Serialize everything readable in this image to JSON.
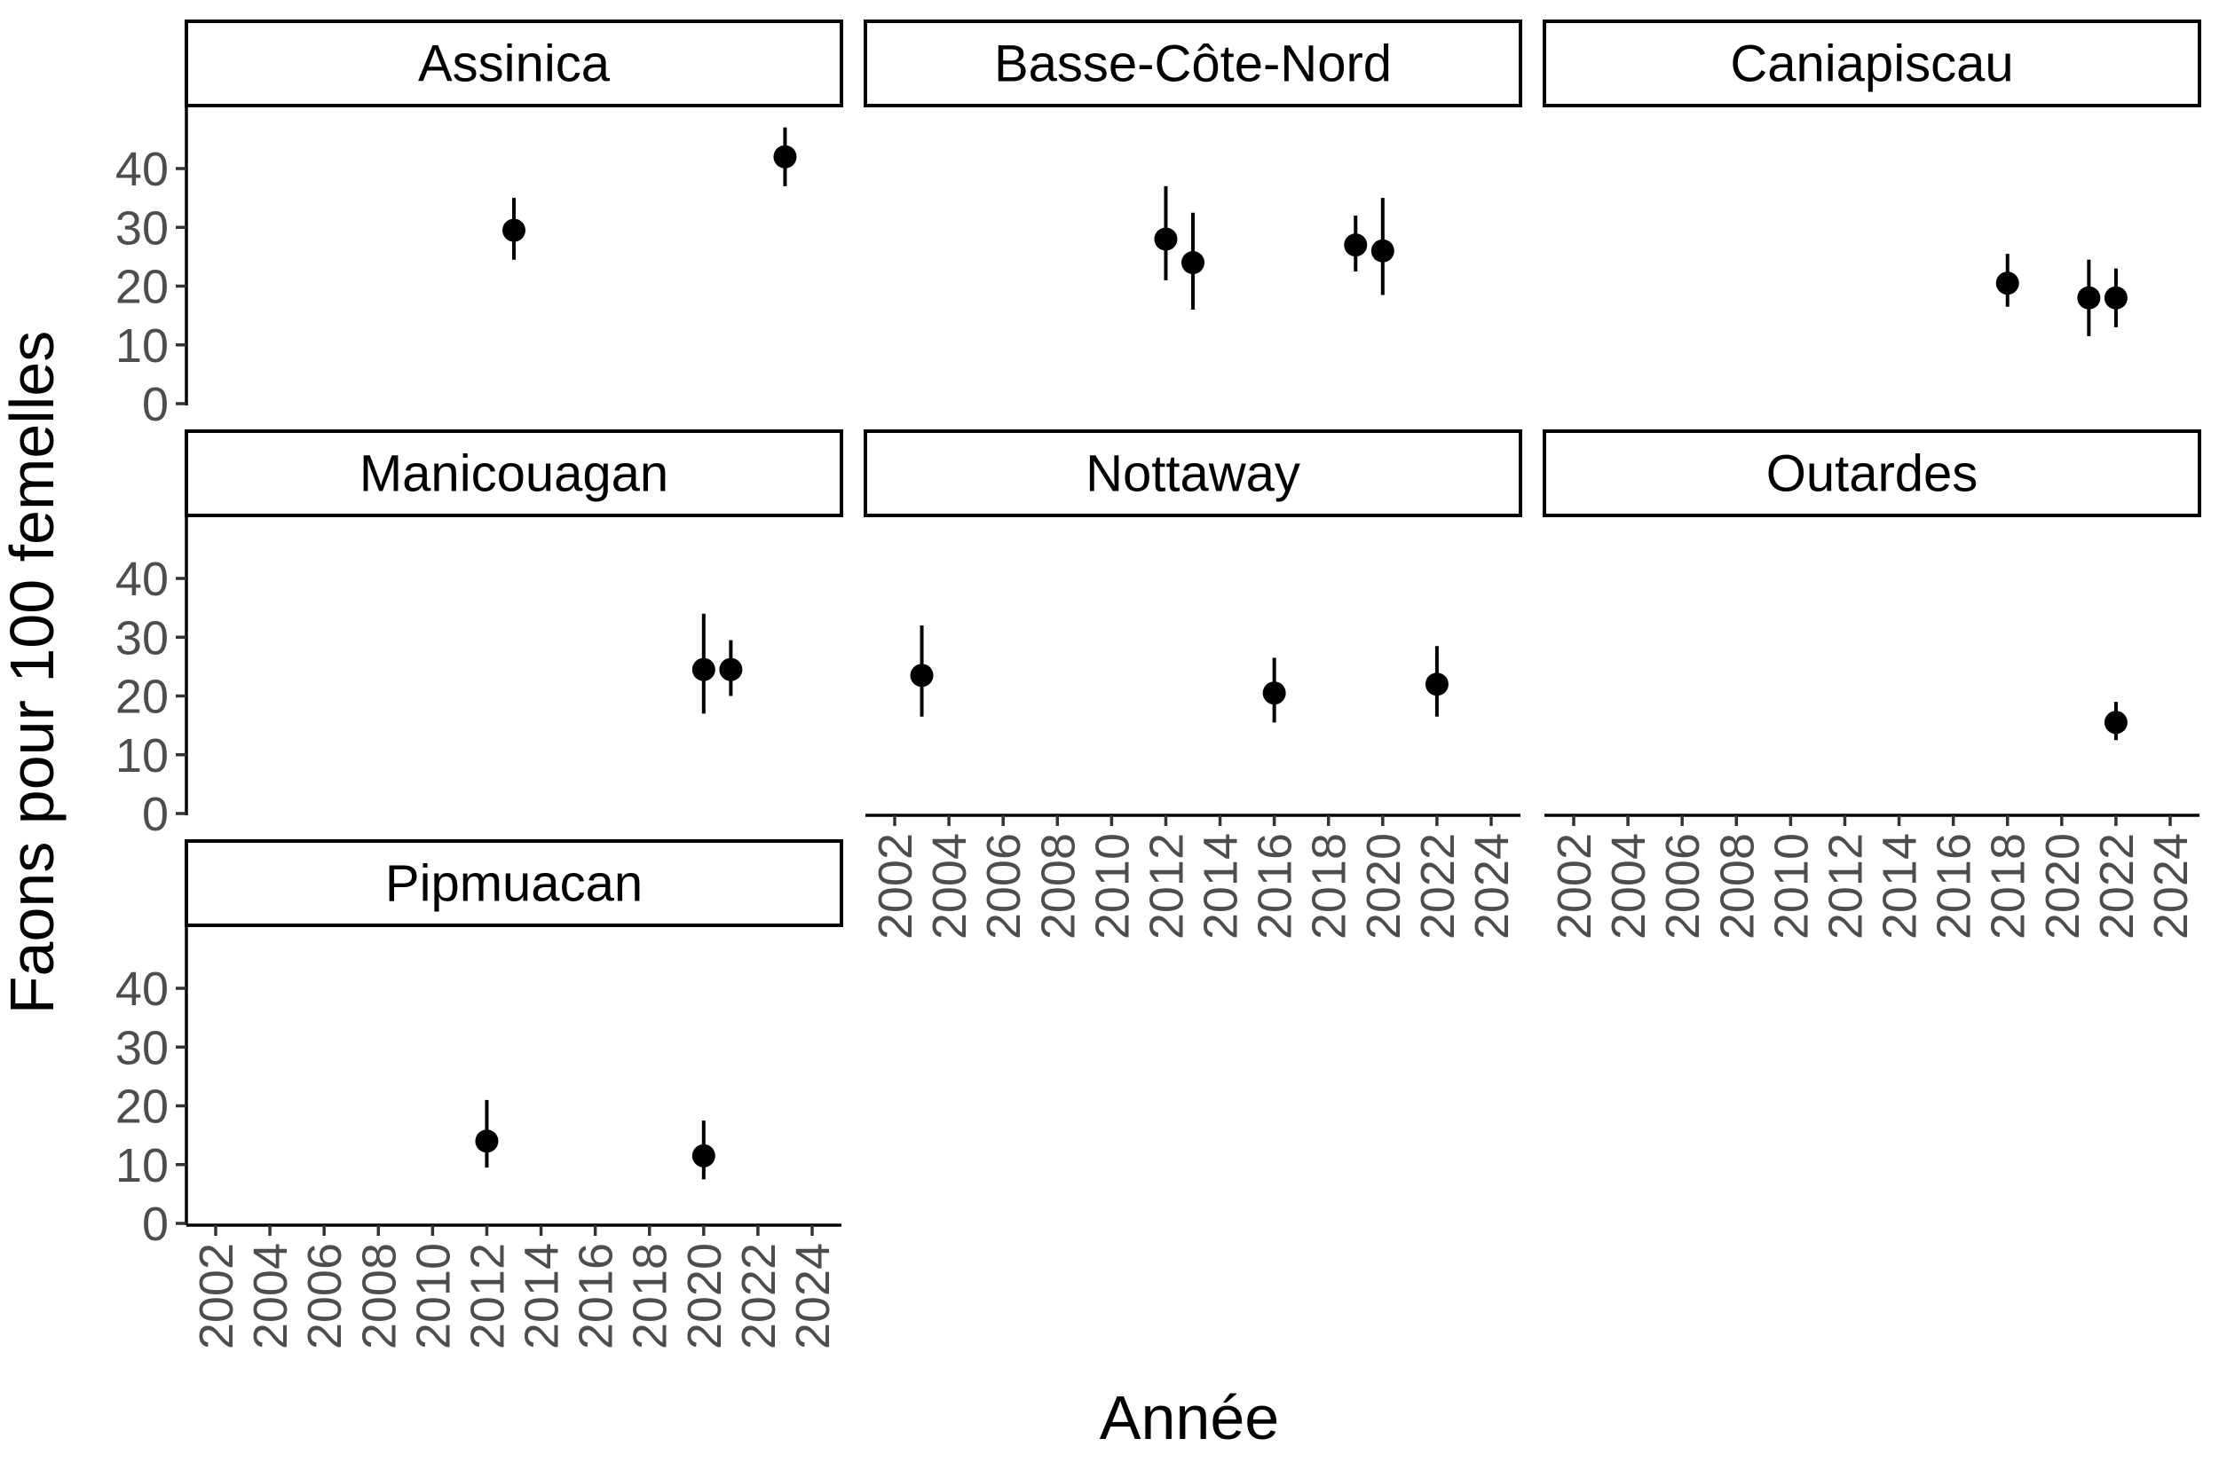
{
  "chart_data": {
    "type": "scatter",
    "xlabel": "Année",
    "ylabel": "Faons pour 100 femelles",
    "xlim": [
      2002,
      2024
    ],
    "ylim": [
      0,
      48
    ],
    "x_ticks": [
      "2002",
      "2004",
      "2006",
      "2008",
      "2010",
      "2012",
      "2014",
      "2016",
      "2018",
      "2020",
      "2022",
      "2024"
    ],
    "y_ticks": [
      "0",
      "10",
      "20",
      "30",
      "40"
    ],
    "grid": false,
    "point_color": "#000000",
    "facets": [
      {
        "name": "Assinica",
        "points": [
          {
            "x": 2013,
            "y": 29.5,
            "lo": 24.5,
            "hi": 35.0
          },
          {
            "x": 2023,
            "y": 42.0,
            "lo": 37.0,
            "hi": 47.0
          }
        ]
      },
      {
        "name": "Basse-Côte-Nord",
        "points": [
          {
            "x": 2012,
            "y": 28.0,
            "lo": 21.0,
            "hi": 37.0
          },
          {
            "x": 2013,
            "y": 24.0,
            "lo": 16.0,
            "hi": 32.5
          },
          {
            "x": 2019,
            "y": 27.0,
            "lo": 22.5,
            "hi": 32.0
          },
          {
            "x": 2020,
            "y": 26.0,
            "lo": 18.5,
            "hi": 35.0
          }
        ]
      },
      {
        "name": "Caniapiscau",
        "points": [
          {
            "x": 2018,
            "y": 20.5,
            "lo": 16.5,
            "hi": 25.5
          },
          {
            "x": 2021,
            "y": 18.0,
            "lo": 11.5,
            "hi": 24.5
          },
          {
            "x": 2022,
            "y": 18.0,
            "lo": 13.0,
            "hi": 23.0
          }
        ]
      },
      {
        "name": "Manicouagan",
        "points": [
          {
            "x": 2020,
            "y": 24.5,
            "lo": 17.0,
            "hi": 34.0
          },
          {
            "x": 2021,
            "y": 24.5,
            "lo": 20.0,
            "hi": 29.5
          }
        ]
      },
      {
        "name": "Nottaway",
        "points": [
          {
            "x": 2003,
            "y": 23.5,
            "lo": 16.5,
            "hi": 32.0
          },
          {
            "x": 2016,
            "y": 20.5,
            "lo": 15.5,
            "hi": 26.5
          },
          {
            "x": 2022,
            "y": 22.0,
            "lo": 16.5,
            "hi": 28.5
          }
        ]
      },
      {
        "name": "Outardes",
        "points": [
          {
            "x": 2022,
            "y": 15.5,
            "lo": 12.5,
            "hi": 19.0
          }
        ]
      },
      {
        "name": "Pipmuacan",
        "points": [
          {
            "x": 2012,
            "y": 14.0,
            "lo": 9.5,
            "hi": 21.0
          },
          {
            "x": 2020,
            "y": 11.5,
            "lo": 7.5,
            "hi": 17.5
          }
        ]
      }
    ]
  }
}
